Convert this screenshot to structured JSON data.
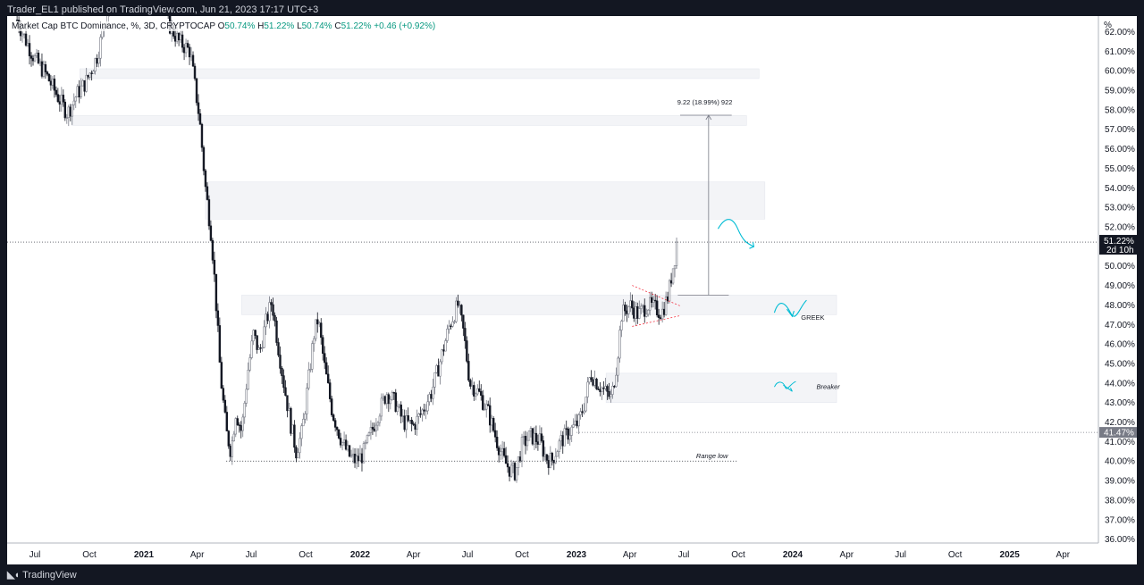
{
  "header": {
    "attribution": "Trader_EL1 published on TradingView.com, Jun 21, 2023 17:17 UTC+3"
  },
  "legend": {
    "symbol": "Market Cap BTC Dominance, %, 3D, CRYPTOCAP",
    "open_label": "O",
    "open": "50.74%",
    "high_label": "H",
    "high": "51.22%",
    "low_label": "L",
    "low": "50.74%",
    "close_label": "C",
    "close": "51.22%",
    "change": "+0.46 (+0.92%)"
  },
  "footer": {
    "brand": "TradingView"
  },
  "chart_data": {
    "type": "candlestick",
    "y_unit": "%",
    "ylim": [
      35.8,
      62.8
    ],
    "y_ticks": [
      "36.00%",
      "37.00%",
      "38.00%",
      "39.00%",
      "40.00%",
      "41.00%",
      "42.00%",
      "43.00%",
      "44.00%",
      "45.00%",
      "46.00%",
      "47.00%",
      "48.00%",
      "49.00%",
      "50.00%",
      "51.00%",
      "52.00%",
      "53.00%",
      "54.00%",
      "55.00%",
      "56.00%",
      "57.00%",
      "58.00%",
      "59.00%",
      "60.00%",
      "61.00%",
      "62.00%"
    ],
    "x_ticks": [
      {
        "label": "Jul",
        "date": "2020-07-01",
        "bold": false
      },
      {
        "label": "Oct",
        "date": "2020-10-01",
        "bold": false
      },
      {
        "label": "2021",
        "date": "2021-01-01",
        "bold": true
      },
      {
        "label": "Apr",
        "date": "2021-04-01",
        "bold": false
      },
      {
        "label": "Jul",
        "date": "2021-07-01",
        "bold": false
      },
      {
        "label": "Oct",
        "date": "2021-10-01",
        "bold": false
      },
      {
        "label": "2022",
        "date": "2022-01-01",
        "bold": true
      },
      {
        "label": "Apr",
        "date": "2022-04-01",
        "bold": false
      },
      {
        "label": "Jul",
        "date": "2022-07-01",
        "bold": false
      },
      {
        "label": "Oct",
        "date": "2022-10-01",
        "bold": false
      },
      {
        "label": "2023",
        "date": "2023-01-01",
        "bold": true
      },
      {
        "label": "Apr",
        "date": "2023-04-01",
        "bold": false
      },
      {
        "label": "Jul",
        "date": "2023-07-01",
        "bold": false
      },
      {
        "label": "Oct",
        "date": "2023-10-01",
        "bold": false
      },
      {
        "label": "2024",
        "date": "2024-01-01",
        "bold": true
      },
      {
        "label": "Apr",
        "date": "2024-04-01",
        "bold": false
      },
      {
        "label": "Jul",
        "date": "2024-07-01",
        "bold": false
      },
      {
        "label": "Oct",
        "date": "2024-10-01",
        "bold": false
      },
      {
        "label": "2025",
        "date": "2025-01-01",
        "bold": true
      },
      {
        "label": "Apr",
        "date": "2025-04-01",
        "bold": false
      }
    ],
    "close_path": [
      {
        "date": "2020-06-01",
        "close": 62.6
      },
      {
        "date": "2020-06-15",
        "close": 61.6
      },
      {
        "date": "2020-07-01",
        "close": 60.6
      },
      {
        "date": "2020-07-20",
        "close": 59.8
      },
      {
        "date": "2020-08-10",
        "close": 58.6
      },
      {
        "date": "2020-08-25",
        "close": 57.8
      },
      {
        "date": "2020-09-10",
        "close": 58.8
      },
      {
        "date": "2020-09-25",
        "close": 59.4
      },
      {
        "date": "2020-10-15",
        "close": 60.8
      },
      {
        "date": "2020-11-01",
        "close": 63.2
      },
      {
        "date": "2020-11-20",
        "close": 64.5
      },
      {
        "date": "2020-12-10",
        "close": 66.0
      },
      {
        "date": "2021-01-01",
        "close": 70.5
      },
      {
        "date": "2021-01-20",
        "close": 65.0
      },
      {
        "date": "2021-02-10",
        "close": 62.5
      },
      {
        "date": "2021-03-01",
        "close": 61.5
      },
      {
        "date": "2021-03-20",
        "close": 61.0
      },
      {
        "date": "2021-04-05",
        "close": 57.5
      },
      {
        "date": "2021-04-15",
        "close": 54.0
      },
      {
        "date": "2021-04-25",
        "close": 51.5
      },
      {
        "date": "2021-05-01",
        "close": 49.0
      },
      {
        "date": "2021-05-10",
        "close": 44.5
      },
      {
        "date": "2021-05-20",
        "close": 41.5
      },
      {
        "date": "2021-05-28",
        "close": 40.5
      },
      {
        "date": "2021-06-05",
        "close": 42.5
      },
      {
        "date": "2021-06-15",
        "close": 41.5
      },
      {
        "date": "2021-06-25",
        "close": 44.5
      },
      {
        "date": "2021-07-05",
        "close": 46.5
      },
      {
        "date": "2021-07-15",
        "close": 45.5
      },
      {
        "date": "2021-07-25",
        "close": 47.0
      },
      {
        "date": "2021-08-05",
        "close": 48.2
      },
      {
        "date": "2021-08-15",
        "close": 46.0
      },
      {
        "date": "2021-08-25",
        "close": 44.0
      },
      {
        "date": "2021-09-05",
        "close": 42.0
      },
      {
        "date": "2021-09-15",
        "close": 40.5
      },
      {
        "date": "2021-09-25",
        "close": 41.5
      },
      {
        "date": "2021-10-05",
        "close": 44.0
      },
      {
        "date": "2021-10-15",
        "close": 46.5
      },
      {
        "date": "2021-10-22",
        "close": 47.3
      },
      {
        "date": "2021-11-01",
        "close": 45.0
      },
      {
        "date": "2021-11-15",
        "close": 42.5
      },
      {
        "date": "2021-12-01",
        "close": 41.0
      },
      {
        "date": "2021-12-15",
        "close": 40.2
      },
      {
        "date": "2021-12-25",
        "close": 40.0
      },
      {
        "date": "2022-01-05",
        "close": 40.3
      },
      {
        "date": "2022-01-20",
        "close": 41.5
      },
      {
        "date": "2022-02-01",
        "close": 42.5
      },
      {
        "date": "2022-02-15",
        "close": 43.5
      },
      {
        "date": "2022-03-01",
        "close": 43.0
      },
      {
        "date": "2022-03-15",
        "close": 42.0
      },
      {
        "date": "2022-04-01",
        "close": 41.8
      },
      {
        "date": "2022-04-15",
        "close": 42.5
      },
      {
        "date": "2022-05-01",
        "close": 43.5
      },
      {
        "date": "2022-05-15",
        "close": 45.0
      },
      {
        "date": "2022-06-01",
        "close": 47.0
      },
      {
        "date": "2022-06-15",
        "close": 48.0
      },
      {
        "date": "2022-06-25",
        "close": 46.5
      },
      {
        "date": "2022-07-05",
        "close": 44.0
      },
      {
        "date": "2022-07-20",
        "close": 43.5
      },
      {
        "date": "2022-08-05",
        "close": 42.5
      },
      {
        "date": "2022-08-20",
        "close": 41.0
      },
      {
        "date": "2022-09-01",
        "close": 40.0
      },
      {
        "date": "2022-09-10",
        "close": 39.6
      },
      {
        "date": "2022-09-20",
        "close": 39.4
      },
      {
        "date": "2022-10-01",
        "close": 40.8
      },
      {
        "date": "2022-10-15",
        "close": 41.3
      },
      {
        "date": "2022-11-01",
        "close": 41.0
      },
      {
        "date": "2022-11-10",
        "close": 40.2
      },
      {
        "date": "2022-11-20",
        "close": 40.0
      },
      {
        "date": "2022-12-05",
        "close": 41.0
      },
      {
        "date": "2022-12-20",
        "close": 41.5
      },
      {
        "date": "2023-01-05",
        "close": 42.0
      },
      {
        "date": "2023-01-15",
        "close": 43.0
      },
      {
        "date": "2023-01-25",
        "close": 44.5
      },
      {
        "date": "2023-02-05",
        "close": 44.0
      },
      {
        "date": "2023-02-20",
        "close": 43.5
      },
      {
        "date": "2023-03-01",
        "close": 43.2
      },
      {
        "date": "2023-03-10",
        "close": 45.0
      },
      {
        "date": "2023-03-18",
        "close": 47.5
      },
      {
        "date": "2023-04-01",
        "close": 48.0
      },
      {
        "date": "2023-04-15",
        "close": 47.5
      },
      {
        "date": "2023-05-01",
        "close": 48.0
      },
      {
        "date": "2023-05-15",
        "close": 47.8
      },
      {
        "date": "2023-05-25",
        "close": 47.6
      },
      {
        "date": "2023-06-05",
        "close": 48.5
      },
      {
        "date": "2023-06-12",
        "close": 49.8
      },
      {
        "date": "2023-06-21",
        "close": 51.22
      }
    ],
    "price_label": {
      "value": "51.22%",
      "countdown": "2d 10h"
    },
    "level_label": {
      "value": "41.47%"
    },
    "annotations": {
      "measure": "9.22 (18.99%) 922",
      "greek": "GREEK",
      "breaker": "Breaker",
      "range_low": "Range low"
    },
    "zones": [
      {
        "from": "2020-09-15",
        "to": "2023-11-05",
        "low": 59.6,
        "high": 60.1
      },
      {
        "from": "2020-09-01",
        "to": "2023-10-15",
        "low": 57.2,
        "high": 57.7
      },
      {
        "from": "2021-04-15",
        "to": "2023-11-15",
        "low": 52.4,
        "high": 54.3
      },
      {
        "from": "2021-06-15",
        "to": "2024-03-15",
        "low": 47.5,
        "high": 48.5
      },
      {
        "from": "2023-02-20",
        "to": "2024-03-15",
        "low": 43.0,
        "high": 44.5
      }
    ],
    "colors": {
      "up": "#9598a1",
      "down": "#131722",
      "annotation": "#00bcd4",
      "triangle": "#f23645",
      "zone": "#f3f4f7"
    }
  }
}
